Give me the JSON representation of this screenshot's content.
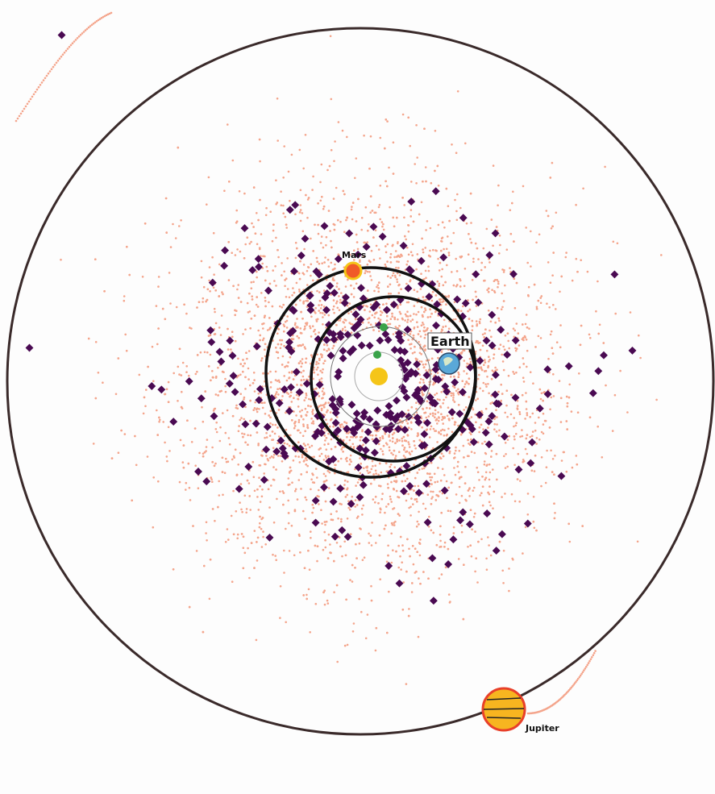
{
  "planets": [
    {
      "label": "Mars"
    },
    {
      "label": "Earth"
    },
    {
      "label": "Jupiter"
    }
  ]
}
